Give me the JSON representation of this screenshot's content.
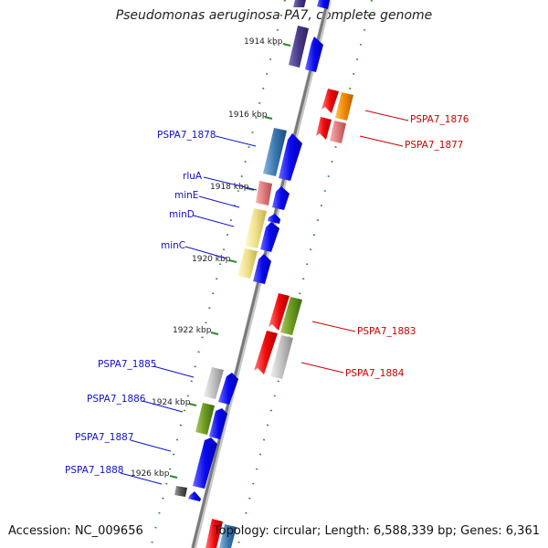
{
  "title": "Pseudomonas aeruginosa PA7, complete genome",
  "footer": {
    "accession": "Accession: NC_009656",
    "topology": "Topology: circular; Length: 6,588,339 bp; Genes: 6,361"
  },
  "ticks": [
    "1914 kbp",
    "1916 kbp",
    "1918 kbp",
    "1920 kbp",
    "1922 kbp",
    "1924 kbp",
    "1926 kbp"
  ],
  "left_labels": [
    "PSPA7_1878",
    "rluA",
    "minE",
    "minD",
    "minC",
    "PSPA7_1885",
    "PSPA7_1886",
    "PSPA7_1887",
    "PSPA7_1888"
  ],
  "right_labels": [
    "PSPA7_1876",
    "PSPA7_1877",
    "PSPA7_1883",
    "PSPA7_1884"
  ],
  "colors": {
    "backbone": "#8a8a8a",
    "forward_arrow": "#1010ee",
    "reverse_arrow": "#ee1111",
    "tick": "#2a8a2a",
    "left_label": "#1010cc",
    "right_label": "#cc0000"
  }
}
